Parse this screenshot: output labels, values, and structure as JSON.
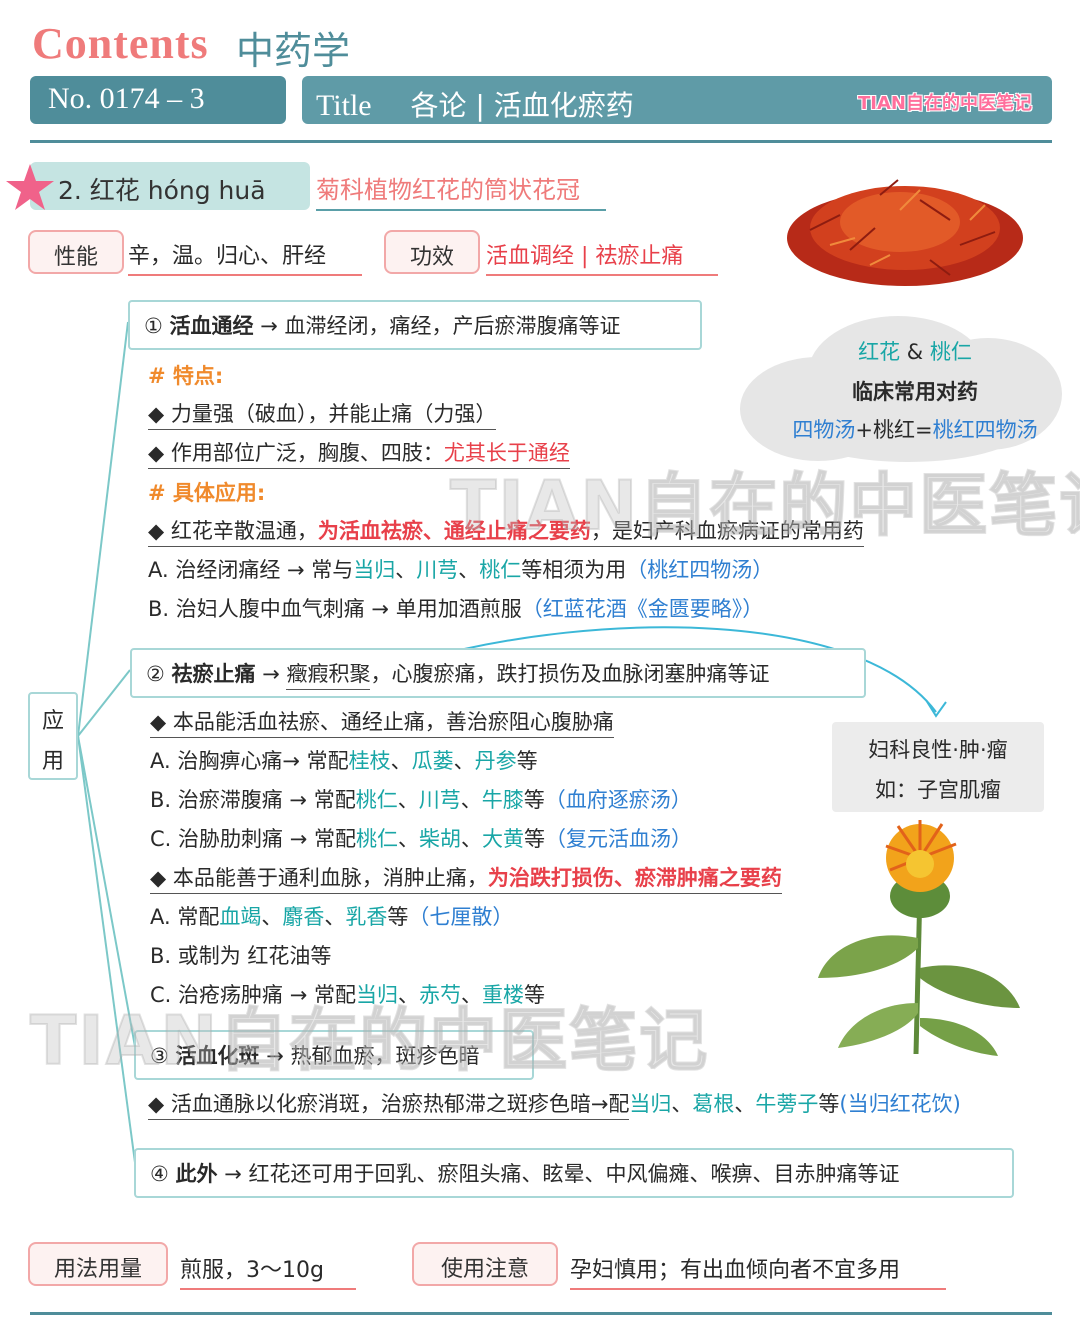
{
  "header": {
    "contents_label": "Contents",
    "subject": "中药学",
    "number": "No. 0174 – 3",
    "title_label": "Title",
    "title_text": "各论 | 活血化瘀药",
    "brand": "TIAN自在的中医笔记"
  },
  "herb": {
    "name": "2.  红花  hóng  huā",
    "source": "菊科植物红花的筒状花冠",
    "property_label": "性能",
    "property_value": "辛，温。归心、肝经",
    "effect_label": "功效",
    "effect_value": "活血调经 | 祛瘀止痛"
  },
  "cloud": {
    "pair_a": "红花",
    "amp": " & ",
    "pair_b": "桃仁",
    "title": "临床常用对药",
    "formula_a": "四物汤",
    "plus": "+桃红=",
    "formula_b": "桃红四物汤"
  },
  "application_label": [
    "应",
    "用"
  ],
  "sec1": {
    "head_num": "① ",
    "head_bold": "活血通经",
    "head_rest": " → 血滞经闭，痛经，产后瘀滞腹痛等证",
    "feature_title": "# 特点:",
    "feat1": "◆ 力量强（破血），并能止痛（力强）",
    "feat2_a": "◆ 作用部位广泛，胸腹、四肢：",
    "feat2_b": "尤其长于通经",
    "apply_title": "# 具体应用:",
    "app1_a": "◆ 红花辛散温通，",
    "app1_b": "为活血祛瘀、通经止痛之要药",
    "app1_c": "，是妇产科血瘀病证的常用药",
    "lineA": [
      "A. 治经闭痛经 → 常与",
      "当归",
      "、",
      "川芎",
      "、",
      "桃仁",
      "等相须为用",
      "（桃红四物汤）"
    ],
    "lineB": [
      "B. 治妇人腹中血气刺痛 → 单用加酒煎服",
      "（红蓝花酒《金匮要略》）"
    ]
  },
  "sec2": {
    "head_num": "② ",
    "head_bold": "祛瘀止痛",
    "head_arrow": " → ",
    "head_ul": "癥瘕积聚",
    "head_rest": "，心腹瘀痛，跌打损伤及血脉闭塞肿痛等证",
    "p1": "◆ 本品能活血祛瘀、通经止痛，善治瘀阻心腹胁痛",
    "lineA": [
      "A. 治胸痹心痛→ 常配",
      "桂枝",
      "、",
      "瓜蒌",
      "、",
      "丹参",
      "等"
    ],
    "lineB": [
      "B. 治瘀滞腹痛 → 常配",
      "桃仁",
      "、",
      "川芎",
      "、",
      "牛膝",
      "等",
      "（血府逐瘀汤）"
    ],
    "lineC": [
      "C. 治胁肋刺痛 → 常配",
      "桃仁",
      "、",
      "柴胡",
      "、",
      "大黄",
      "等",
      "（复元活血汤）"
    ],
    "p2_a": "◆ 本品能善于通利血脉，消肿止痛，",
    "p2_b": "为治跌打损伤、瘀滞肿痛之要药",
    "lineA2": [
      "A. 常配",
      "血竭",
      "、",
      "麝香",
      "、",
      "乳香",
      "等",
      "（七厘散）"
    ],
    "lineB2": "B. 或制为 红花油等",
    "lineC2": [
      "C. 治疮疡肿痛 → 常配",
      "当归",
      "、",
      "赤芍",
      "、",
      "重楼",
      "等"
    ]
  },
  "gyn": {
    "line1": "妇科良性·肿·瘤",
    "line2": "如：子宫肌瘤"
  },
  "sec3": {
    "head_num": "③ ",
    "head_bold": "活血化斑",
    "head_rest": " → 热郁血瘀，斑疹色暗",
    "line": [
      "◆ 活血通脉以化瘀消斑，治瘀热郁滞之斑疹色暗→配",
      "当归",
      "、",
      "葛根",
      "、",
      "牛蒡子",
      "等",
      "(当归红花饮)"
    ]
  },
  "sec4": {
    "head_num": "④ ",
    "head_bold": "此外",
    "head_rest": " → 红花还可用于回乳、瘀阻头痛、眩晕、中风偏瘫、喉痹、目赤肿痛等证"
  },
  "footer": {
    "dosage_label": "用法用量",
    "dosage_value": "煎服，3～10g",
    "caution_label": "使用注意",
    "caution_value": "孕妇慎用；有出血倾向者不宜多用"
  },
  "watermark": "TIAN自在的中医笔记"
}
